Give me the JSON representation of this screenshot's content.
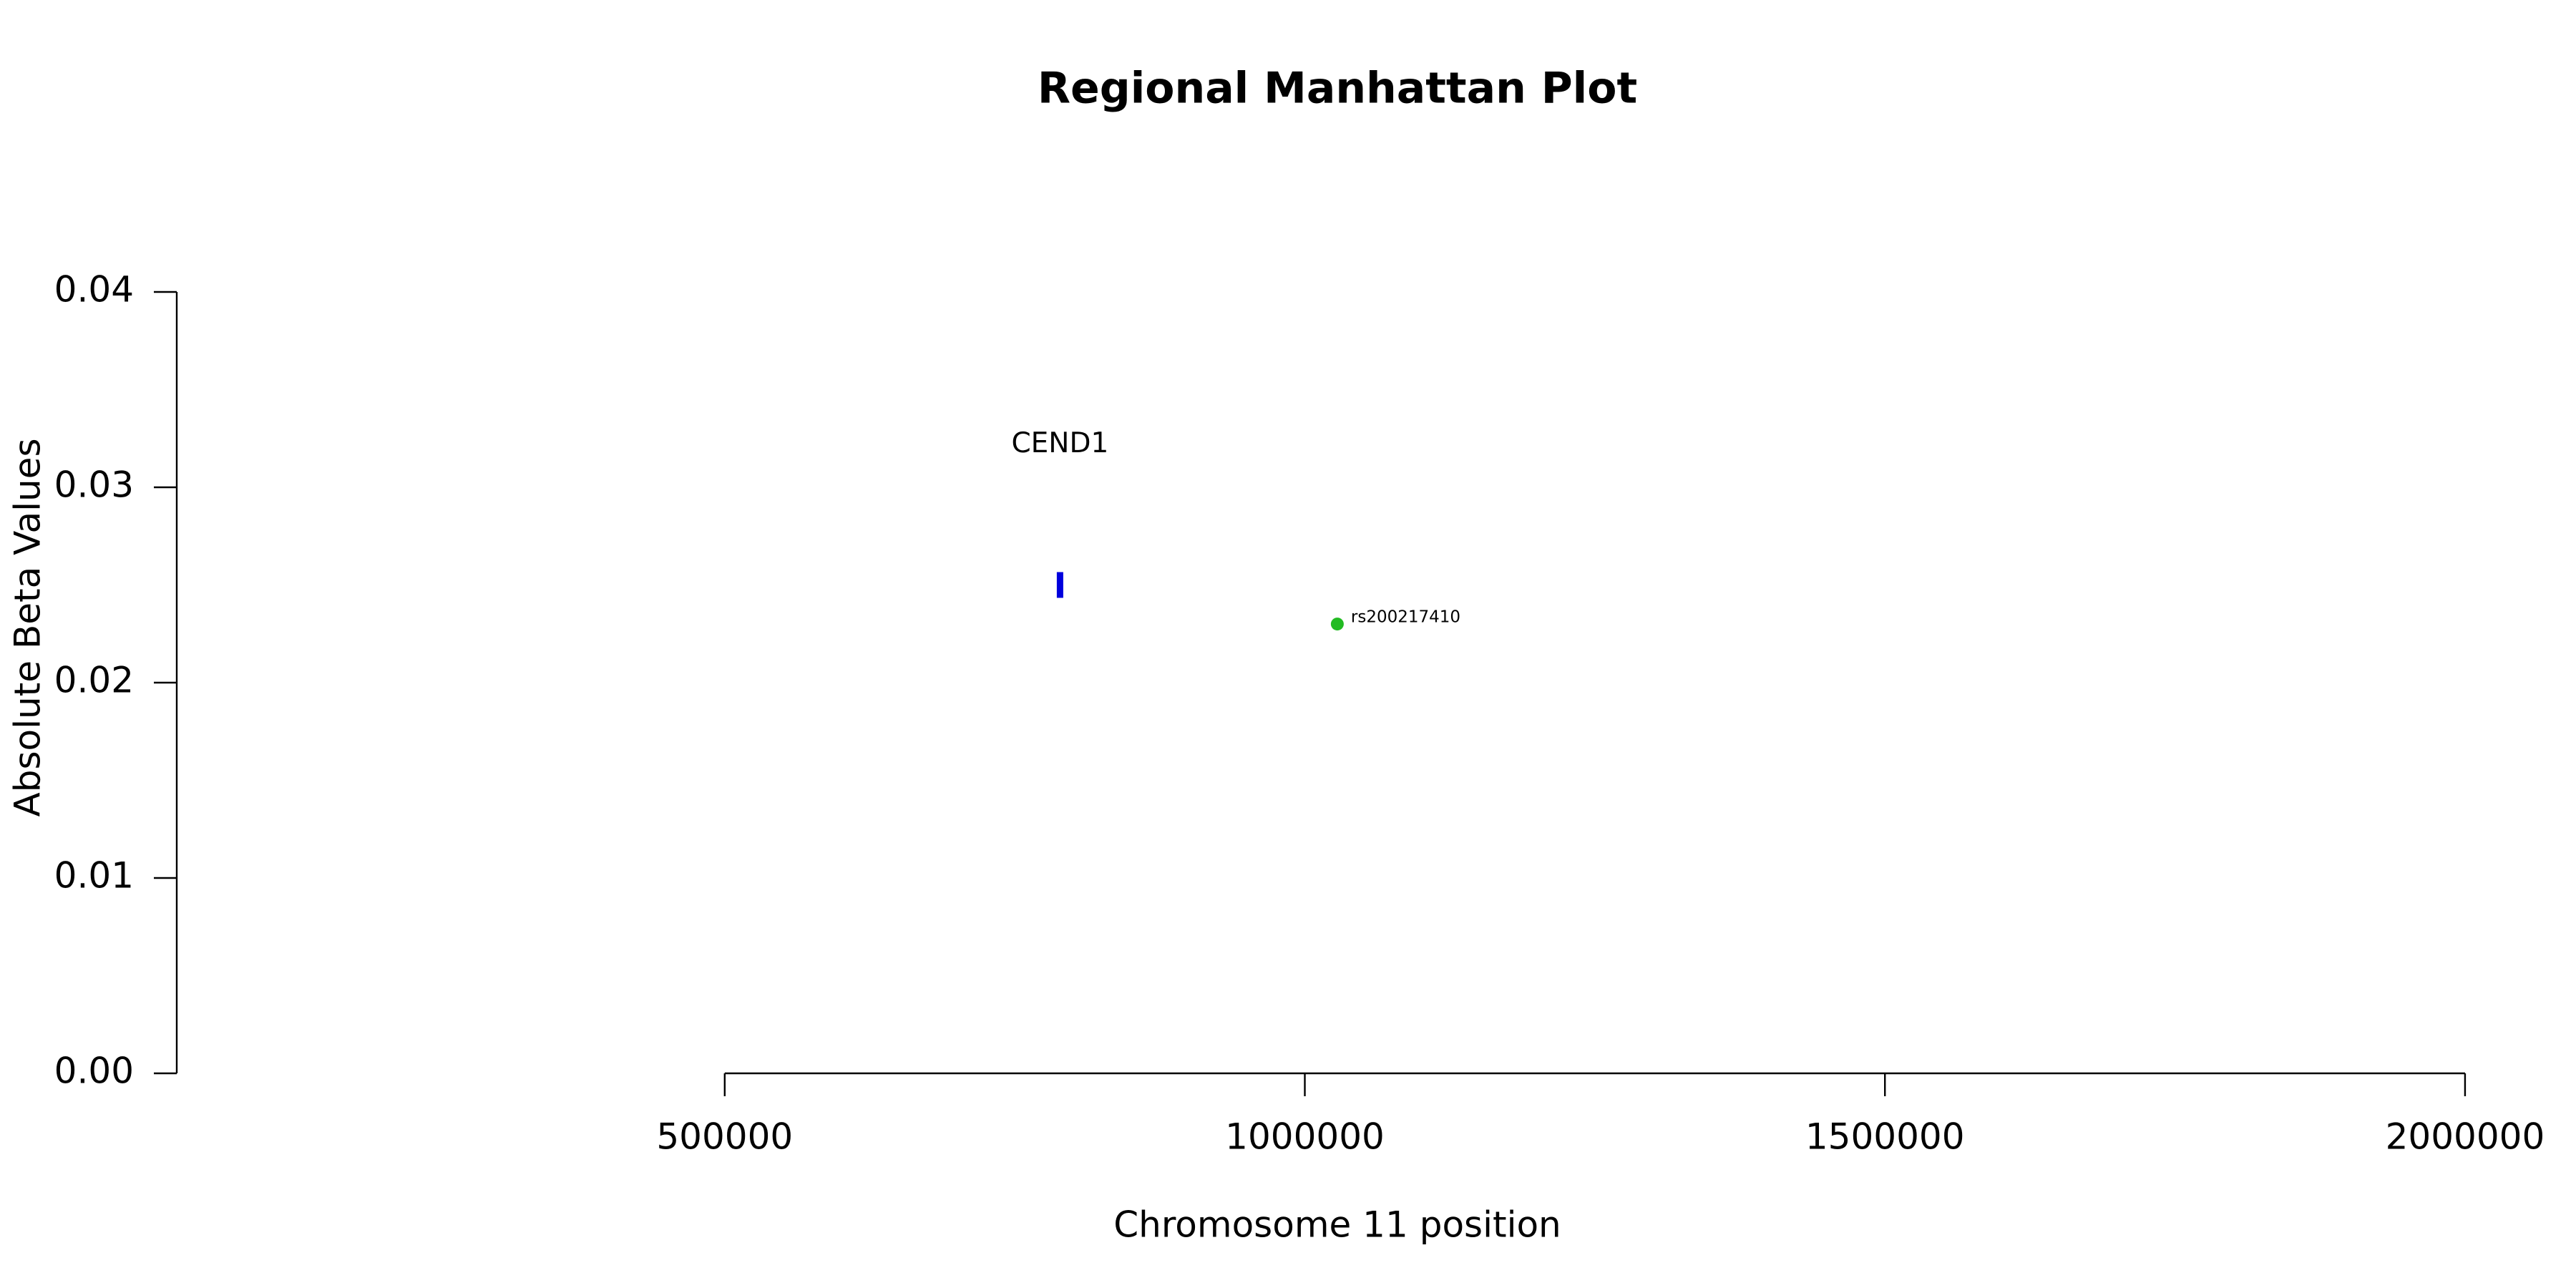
{
  "chart_data": {
    "type": "scatter",
    "title": "Regional Manhattan Plot",
    "x_label": "Chromosome 11 position",
    "y_label": "Absolute Beta Values",
    "series": [
      {
        "name": "rs200217410",
        "color": "#22bb22",
        "x": [
          1028000
        ],
        "values": [
          0.023
        ]
      }
    ],
    "genes": [
      {
        "name": "CEND1",
        "x": 789000,
        "y": 0.025,
        "color": "#0000dd"
      }
    ],
    "xlim": [
      27700,
      2050000
    ],
    "xticks": [
      500000,
      1000000,
      1500000,
      2000000
    ],
    "ylim": [
      0,
      0.04
    ],
    "yticks": [
      {
        "value": 0,
        "label": "0.00"
      },
      0.01,
      0.02,
      0.03,
      0.04
    ],
    "grid": false
  }
}
